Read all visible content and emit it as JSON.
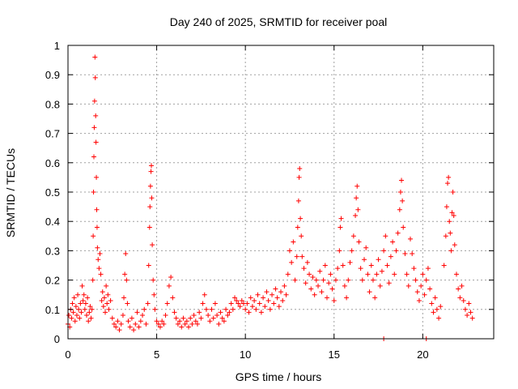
{
  "chart_data": {
    "type": "scatter",
    "title": "Day 240 of 2025, SRMTID for receiver poal",
    "xlabel": "GPS time / hours",
    "ylabel": "SRMTID / TECUs",
    "xlim": [
      0,
      24
    ],
    "ylim": [
      0,
      1
    ],
    "xticks": [
      0,
      5,
      10,
      15,
      20
    ],
    "yticks": [
      0,
      0.1,
      0.2,
      0.3,
      0.4,
      0.5,
      0.6,
      0.7,
      0.8,
      0.9,
      1
    ],
    "xtick_labels": [
      "0",
      "5",
      "10",
      "15",
      "20"
    ],
    "ytick_labels": [
      "0",
      "0.1",
      "0.2",
      "0.3",
      "0.4",
      "0.5",
      "0.6",
      "0.7",
      "0.8",
      "0.9",
      "1"
    ],
    "grid": true,
    "marker": "+",
    "marker_color": "#ff0000",
    "series": [
      {
        "name": "SRMTID",
        "points": [
          [
            0.0,
            0.05
          ],
          [
            0.05,
            0.08
          ],
          [
            0.1,
            0.04
          ],
          [
            0.15,
            0.1
          ],
          [
            0.2,
            0.07
          ],
          [
            0.25,
            0.12
          ],
          [
            0.3,
            0.09
          ],
          [
            0.35,
            0.14
          ],
          [
            0.4,
            0.06
          ],
          [
            0.45,
            0.11
          ],
          [
            0.5,
            0.08
          ],
          [
            0.55,
            0.15
          ],
          [
            0.6,
            0.1
          ],
          [
            0.65,
            0.07
          ],
          [
            0.7,
            0.12
          ],
          [
            0.75,
            0.09
          ],
          [
            0.8,
            0.18
          ],
          [
            0.85,
            0.13
          ],
          [
            0.9,
            0.15
          ],
          [
            0.95,
            0.1
          ],
          [
            1.0,
            0.12
          ],
          [
            1.05,
            0.08
          ],
          [
            1.1,
            0.14
          ],
          [
            1.15,
            0.06
          ],
          [
            1.2,
            0.09
          ],
          [
            1.25,
            0.11
          ],
          [
            1.3,
            0.07
          ],
          [
            1.35,
            0.1
          ],
          [
            1.4,
            0.2
          ],
          [
            1.42,
            0.35
          ],
          [
            1.44,
            0.5
          ],
          [
            1.46,
            0.62
          ],
          [
            1.48,
            0.72
          ],
          [
            1.5,
            0.81
          ],
          [
            1.52,
            0.96
          ],
          [
            1.54,
            0.89
          ],
          [
            1.56,
            0.76
          ],
          [
            1.58,
            0.67
          ],
          [
            1.6,
            0.55
          ],
          [
            1.62,
            0.44
          ],
          [
            1.64,
            0.38
          ],
          [
            1.66,
            0.31
          ],
          [
            1.7,
            0.27
          ],
          [
            1.75,
            0.24
          ],
          [
            1.8,
            0.29
          ],
          [
            1.85,
            0.22
          ],
          [
            1.9,
            0.13
          ],
          [
            1.95,
            0.16
          ],
          [
            2.0,
            0.11
          ],
          [
            2.05,
            0.14
          ],
          [
            2.1,
            0.09
          ],
          [
            2.15,
            0.18
          ],
          [
            2.2,
            0.12
          ],
          [
            2.25,
            0.15
          ],
          [
            2.3,
            0.1
          ],
          [
            2.4,
            0.13
          ],
          [
            2.5,
            0.07
          ],
          [
            2.6,
            0.05
          ],
          [
            2.7,
            0.04
          ],
          [
            2.8,
            0.06
          ],
          [
            2.9,
            0.03
          ],
          [
            3.0,
            0.05
          ],
          [
            3.1,
            0.08
          ],
          [
            3.15,
            0.14
          ],
          [
            3.2,
            0.22
          ],
          [
            3.25,
            0.29
          ],
          [
            3.3,
            0.2
          ],
          [
            3.35,
            0.12
          ],
          [
            3.4,
            0.06
          ],
          [
            3.5,
            0.04
          ],
          [
            3.6,
            0.07
          ],
          [
            3.7,
            0.03
          ],
          [
            3.8,
            0.05
          ],
          [
            3.9,
            0.09
          ],
          [
            4.0,
            0.04
          ],
          [
            4.1,
            0.06
          ],
          [
            4.2,
            0.08
          ],
          [
            4.3,
            0.1
          ],
          [
            4.4,
            0.05
          ],
          [
            4.5,
            0.12
          ],
          [
            4.55,
            0.25
          ],
          [
            4.6,
            0.38
          ],
          [
            4.62,
            0.45
          ],
          [
            4.65,
            0.52
          ],
          [
            4.68,
            0.57
          ],
          [
            4.7,
            0.59
          ],
          [
            4.72,
            0.48
          ],
          [
            4.75,
            0.32
          ],
          [
            4.8,
            0.2
          ],
          [
            4.85,
            0.15
          ],
          [
            4.9,
            0.1
          ],
          [
            5.0,
            0.06
          ],
          [
            5.1,
            0.05
          ],
          [
            5.2,
            0.04
          ],
          [
            5.3,
            0.06
          ],
          [
            5.4,
            0.05
          ],
          [
            5.5,
            0.08
          ],
          [
            5.6,
            0.12
          ],
          [
            5.7,
            0.18
          ],
          [
            5.8,
            0.21
          ],
          [
            5.9,
            0.14
          ],
          [
            6.0,
            0.09
          ],
          [
            6.1,
            0.07
          ],
          [
            6.2,
            0.05
          ],
          [
            6.3,
            0.06
          ],
          [
            6.4,
            0.04
          ],
          [
            6.5,
            0.07
          ],
          [
            6.6,
            0.05
          ],
          [
            6.7,
            0.06
          ],
          [
            6.8,
            0.04
          ],
          [
            6.9,
            0.07
          ],
          [
            7.0,
            0.05
          ],
          [
            7.1,
            0.08
          ],
          [
            7.2,
            0.06
          ],
          [
            7.3,
            0.05
          ],
          [
            7.4,
            0.09
          ],
          [
            7.5,
            0.07
          ],
          [
            7.6,
            0.12
          ],
          [
            7.7,
            0.15
          ],
          [
            7.8,
            0.1
          ],
          [
            7.9,
            0.08
          ],
          [
            8.0,
            0.06
          ],
          [
            8.1,
            0.1
          ],
          [
            8.2,
            0.07
          ],
          [
            8.3,
            0.12
          ],
          [
            8.4,
            0.08
          ],
          [
            8.5,
            0.05
          ],
          [
            8.6,
            0.09
          ],
          [
            8.7,
            0.07
          ],
          [
            8.8,
            0.06
          ],
          [
            8.9,
            0.1
          ],
          [
            9.0,
            0.08
          ],
          [
            9.1,
            0.09
          ],
          [
            9.2,
            0.12
          ],
          [
            9.3,
            0.1
          ],
          [
            9.4,
            0.14
          ],
          [
            9.5,
            0.13
          ],
          [
            9.6,
            0.12
          ],
          [
            9.7,
            0.11
          ],
          [
            9.8,
            0.13
          ],
          [
            9.9,
            0.12
          ],
          [
            10.0,
            0.1
          ],
          [
            10.1,
            0.12
          ],
          [
            10.2,
            0.09
          ],
          [
            10.3,
            0.14
          ],
          [
            10.4,
            0.11
          ],
          [
            10.5,
            0.13
          ],
          [
            10.6,
            0.1
          ],
          [
            10.7,
            0.15
          ],
          [
            10.8,
            0.12
          ],
          [
            10.9,
            0.09
          ],
          [
            11.0,
            0.14
          ],
          [
            11.1,
            0.11
          ],
          [
            11.2,
            0.16
          ],
          [
            11.3,
            0.13
          ],
          [
            11.4,
            0.1
          ],
          [
            11.5,
            0.15
          ],
          [
            11.6,
            0.12
          ],
          [
            11.7,
            0.17
          ],
          [
            11.8,
            0.14
          ],
          [
            11.9,
            0.11
          ],
          [
            12.0,
            0.16
          ],
          [
            12.1,
            0.13
          ],
          [
            12.2,
            0.18
          ],
          [
            12.3,
            0.15
          ],
          [
            12.4,
            0.22
          ],
          [
            12.5,
            0.3
          ],
          [
            12.6,
            0.26
          ],
          [
            12.7,
            0.33
          ],
          [
            12.8,
            0.2
          ],
          [
            12.9,
            0.28
          ],
          [
            12.95,
            0.38
          ],
          [
            13.0,
            0.47
          ],
          [
            13.03,
            0.55
          ],
          [
            13.06,
            0.58
          ],
          [
            13.1,
            0.41
          ],
          [
            13.15,
            0.35
          ],
          [
            13.2,
            0.28
          ],
          [
            13.3,
            0.24
          ],
          [
            13.4,
            0.19
          ],
          [
            13.5,
            0.26
          ],
          [
            13.6,
            0.22
          ],
          [
            13.7,
            0.17
          ],
          [
            13.8,
            0.21
          ],
          [
            13.9,
            0.15
          ],
          [
            14.0,
            0.2
          ],
          [
            14.1,
            0.18
          ],
          [
            14.2,
            0.23
          ],
          [
            14.3,
            0.16
          ],
          [
            14.4,
            0.2
          ],
          [
            14.5,
            0.25
          ],
          [
            14.6,
            0.14
          ],
          [
            14.7,
            0.19
          ],
          [
            14.8,
            0.22
          ],
          [
            14.9,
            0.17
          ],
          [
            15.0,
            0.13
          ],
          [
            15.1,
            0.2
          ],
          [
            15.2,
            0.24
          ],
          [
            15.3,
            0.3
          ],
          [
            15.35,
            0.38
          ],
          [
            15.4,
            0.41
          ],
          [
            15.5,
            0.25
          ],
          [
            15.6,
            0.18
          ],
          [
            15.7,
            0.14
          ],
          [
            15.8,
            0.2
          ],
          [
            15.9,
            0.26
          ],
          [
            16.0,
            0.3
          ],
          [
            16.1,
            0.35
          ],
          [
            16.2,
            0.42
          ],
          [
            16.25,
            0.48
          ],
          [
            16.3,
            0.52
          ],
          [
            16.35,
            0.44
          ],
          [
            16.4,
            0.33
          ],
          [
            16.5,
            0.24
          ],
          [
            16.6,
            0.2
          ],
          [
            16.7,
            0.27
          ],
          [
            16.8,
            0.31
          ],
          [
            16.9,
            0.22
          ],
          [
            17.0,
            0.16
          ],
          [
            17.1,
            0.25
          ],
          [
            17.2,
            0.2
          ],
          [
            17.3,
            0.14
          ],
          [
            17.4,
            0.22
          ],
          [
            17.5,
            0.27
          ],
          [
            17.6,
            0.18
          ],
          [
            17.7,
            0.23
          ],
          [
            17.8,
            0.3
          ],
          [
            17.9,
            0.35
          ],
          [
            18.0,
            0.25
          ],
          [
            18.1,
            0.19
          ],
          [
            18.2,
            0.28
          ],
          [
            18.3,
            0.33
          ],
          [
            18.4,
            0.22
          ],
          [
            18.5,
            0.3
          ],
          [
            18.6,
            0.36
          ],
          [
            18.7,
            0.44
          ],
          [
            18.75,
            0.5
          ],
          [
            18.8,
            0.54
          ],
          [
            18.85,
            0.47
          ],
          [
            18.9,
            0.38
          ],
          [
            19.0,
            0.29
          ],
          [
            19.1,
            0.22
          ],
          [
            19.2,
            0.18
          ],
          [
            19.3,
            0.34
          ],
          [
            19.4,
            0.29
          ],
          [
            19.5,
            0.24
          ],
          [
            19.6,
            0.2
          ],
          [
            19.7,
            0.16
          ],
          [
            19.8,
            0.13
          ],
          [
            19.9,
            0.18
          ],
          [
            20.0,
            0.22
          ],
          [
            20.1,
            0.15
          ],
          [
            20.2,
            0.2
          ],
          [
            20.3,
            0.24
          ],
          [
            20.4,
            0.17
          ],
          [
            20.5,
            0.12
          ],
          [
            20.6,
            0.09
          ],
          [
            20.7,
            0.14
          ],
          [
            20.8,
            0.1
          ],
          [
            20.9,
            0.07
          ],
          [
            21.0,
            0.11
          ],
          [
            21.2,
            0.25
          ],
          [
            21.3,
            0.35
          ],
          [
            21.35,
            0.45
          ],
          [
            21.4,
            0.53
          ],
          [
            21.45,
            0.55
          ],
          [
            21.5,
            0.4
          ],
          [
            21.55,
            0.36
          ],
          [
            21.6,
            0.3
          ],
          [
            21.65,
            0.43
          ],
          [
            21.7,
            0.5
          ],
          [
            21.75,
            0.42
          ],
          [
            21.8,
            0.32
          ],
          [
            21.9,
            0.22
          ],
          [
            22.0,
            0.17
          ],
          [
            22.1,
            0.14
          ],
          [
            22.2,
            0.18
          ],
          [
            22.3,
            0.13
          ],
          [
            22.4,
            0.1
          ],
          [
            22.5,
            0.08
          ],
          [
            22.6,
            0.12
          ],
          [
            22.7,
            0.09
          ],
          [
            22.8,
            0.07
          ],
          [
            17.8,
            0.0
          ],
          [
            20.2,
            0.0
          ]
        ]
      }
    ]
  }
}
